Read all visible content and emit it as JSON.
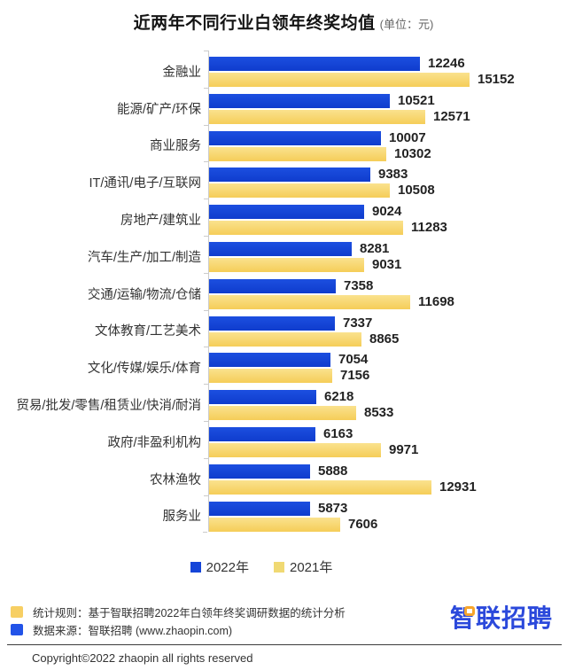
{
  "title": {
    "main": "近两年不同行业白领年终奖均值",
    "unit": "(单位：元)"
  },
  "chart_data": {
    "type": "bar",
    "orientation": "horizontal",
    "title": "近两年不同行业白领年终奖均值",
    "unit_label": "(单位：元)",
    "categories": [
      "金融业",
      "能源/矿产/环保",
      "商业服务",
      "IT/通讯/电子/互联网",
      "房地产/建筑业",
      "汽车/生产/加工/制造",
      "交通/运输/物流/仓储",
      "文体教育/工艺美术",
      "文化/传媒/娱乐/体育",
      "贸易/批发/零售/租赁业/快消/耐消",
      "政府/非盈利机构",
      "农林渔牧",
      "服务业"
    ],
    "series": [
      {
        "name": "2022年",
        "color": "#1545d8",
        "values": [
          12246,
          10521,
          10007,
          9383,
          9024,
          8281,
          7358,
          7337,
          7054,
          6218,
          6163,
          5888,
          5873
        ]
      },
      {
        "name": "2021年",
        "color": "#f0d973",
        "values": [
          15152,
          12571,
          10302,
          10508,
          11283,
          9031,
          11698,
          8865,
          7156,
          8533,
          9971,
          12931,
          7606
        ]
      }
    ],
    "xlim": [
      0,
      15500
    ],
    "value_labels": true,
    "grid": false,
    "legend_position": "bottom"
  },
  "footnotes": [
    {
      "marker_icon": "yellow-square",
      "marker_color": "#f7cf63",
      "text": "统计规则：基于智联招聘2022年白领年终奖调研数据的统计分析"
    },
    {
      "marker_icon": "blue-square",
      "marker_color": "#2253e8",
      "text": "数据来源：智联招聘 (www.zhaopin.com)"
    }
  ],
  "logo": {
    "text": "智联招聘",
    "color": "#2b49db",
    "accent_color": "#f7a52b"
  },
  "copyright": "Copyright©2022 zhaopin all rights reserved"
}
